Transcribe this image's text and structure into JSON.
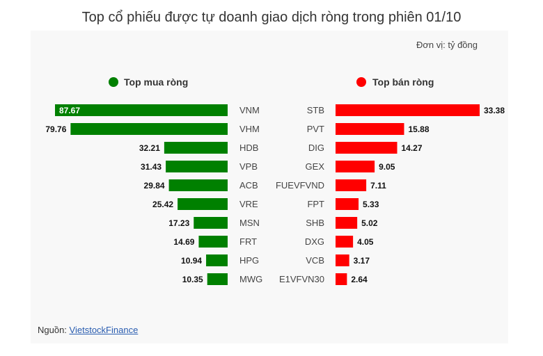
{
  "title": "Top cổ phiếu được tự doanh giao dịch ròng trong phiên 01/10",
  "unit": "Đơn vị: tỷ đồng",
  "source_label": "Nguồn:",
  "source_link": "VietstockFinance",
  "colors": {
    "buy": "#008000",
    "sell": "#ff0000"
  },
  "chart_data": [
    {
      "type": "bar",
      "orientation": "horizontal",
      "legend": "Top mua ròng",
      "color": "#008000",
      "categories": [
        "VNM",
        "VHM",
        "HDB",
        "VPB",
        "ACB",
        "VRE",
        "MSN",
        "FRT",
        "HPG",
        "MWG"
      ],
      "values": [
        87.67,
        79.76,
        32.21,
        31.43,
        29.84,
        25.42,
        17.23,
        14.69,
        10.94,
        10.35
      ],
      "value_labels": [
        "87.67",
        "79.76",
        "32.21",
        "31.43",
        "29.84",
        "25.42",
        "17.23",
        "14.69",
        "10.94",
        "10.35"
      ]
    },
    {
      "type": "bar",
      "orientation": "horizontal",
      "legend": "Top bán ròng",
      "color": "#ff0000",
      "categories": [
        "STB",
        "PVT",
        "DIG",
        "GEX",
        "FUEVFVND",
        "FPT",
        "SHB",
        "DXG",
        "VCB",
        "E1VFVN30"
      ],
      "values": [
        33.38,
        15.88,
        14.27,
        9.05,
        7.11,
        5.33,
        5.02,
        4.05,
        3.17,
        2.64
      ],
      "value_labels": [
        "33.38",
        "15.88",
        "14.27",
        "9.05",
        "7.11",
        "5.33",
        "5.02",
        "4.05",
        "3.17",
        "2.64"
      ]
    }
  ]
}
